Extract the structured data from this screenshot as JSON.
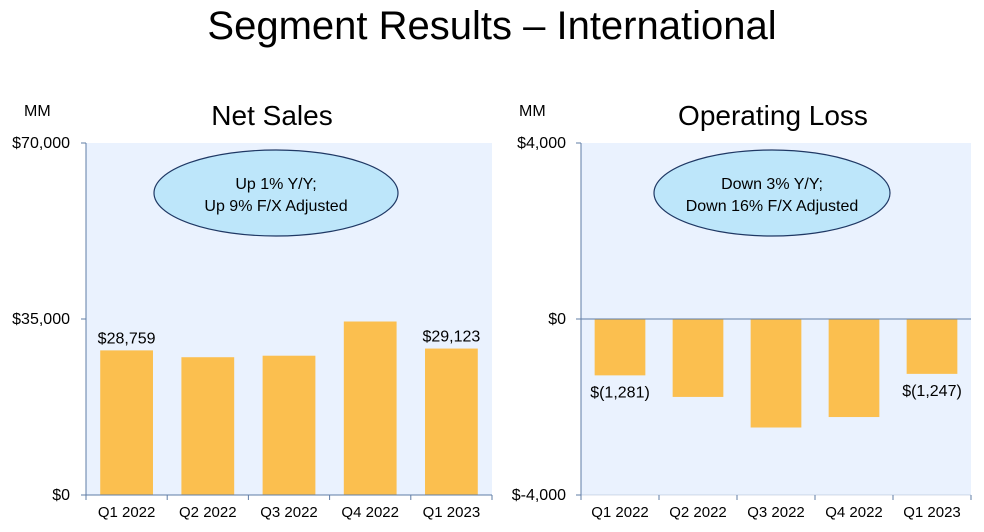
{
  "title": "Segment Results – International",
  "colors": {
    "bar": "#FBBF4F",
    "plot_bg": "#EAF2FE",
    "axis": "#5F7CA6",
    "callout_fill": "#BDE6FA",
    "callout_stroke": "#1F3864"
  },
  "chart_data": [
    {
      "type": "bar",
      "title": "Net Sales",
      "unit_label": "MM",
      "categories": [
        "Q1 2022",
        "Q2 2022",
        "Q3 2022",
        "Q4 2022",
        "Q1 2023"
      ],
      "values": [
        28759,
        27400,
        27700,
        34500,
        29123
      ],
      "ylim": [
        0,
        70000
      ],
      "yticks": [
        0,
        35000,
        70000
      ],
      "ytick_labels": [
        "$0",
        "$35,000",
        "$70,000"
      ],
      "data_labels": [
        "$28,759",
        "",
        "",
        "",
        "$29,123"
      ],
      "callout": [
        "Up 1% Y/Y;",
        "Up 9% F/X Adjusted"
      ]
    },
    {
      "type": "bar",
      "title": "Operating Loss",
      "unit_label": "MM",
      "categories": [
        "Q1 2022",
        "Q2 2022",
        "Q3 2022",
        "Q4 2022",
        "Q1 2023"
      ],
      "values": [
        -1281,
        -1771,
        -2466,
        -2228,
        -1247
      ],
      "ylim": [
        -4000,
        4000
      ],
      "yticks": [
        -4000,
        0,
        4000
      ],
      "ytick_labels": [
        "$-4,000",
        "$0",
        "$4,000"
      ],
      "data_labels": [
        "$(1,281)",
        "",
        "",
        "",
        "$(1,247)"
      ],
      "callout": [
        "Down 3% Y/Y;",
        "Down 16% F/X Adjusted"
      ]
    }
  ]
}
